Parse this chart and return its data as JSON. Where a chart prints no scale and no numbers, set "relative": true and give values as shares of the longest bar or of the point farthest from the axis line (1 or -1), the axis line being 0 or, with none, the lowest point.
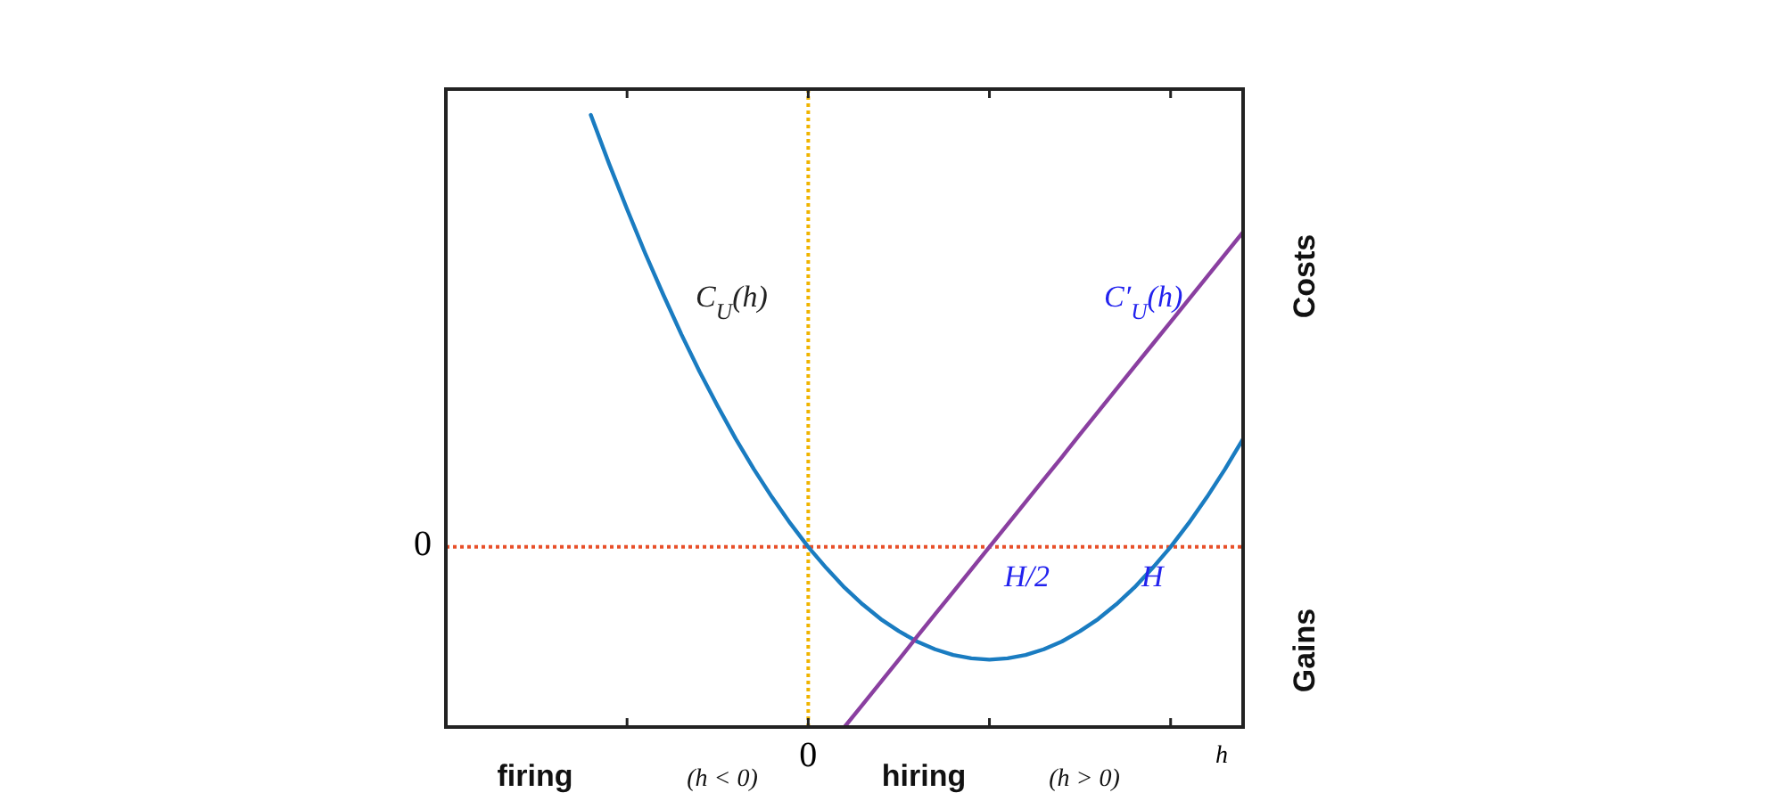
{
  "chart_data": {
    "type": "line",
    "relative": true,
    "xlabel": "h",
    "categories": [
      null,
      null,
      null,
      null,
      null,
      null,
      null,
      null,
      null,
      null,
      null,
      null,
      null,
      null,
      null,
      null,
      null,
      null,
      null,
      null,
      null,
      null,
      null,
      null,
      null,
      null,
      null,
      null,
      null,
      null,
      null,
      null,
      null,
      null,
      null,
      null,
      null,
      null,
      null,
      null,
      null,
      null,
      null,
      null,
      null
    ],
    "series": [
      {
        "values": [
          null,
          null,
          null,
          null,
          null,
          null,
          null,
          null,
          1,
          0.888,
          0.782,
          0.68,
          0.584,
          0.492,
          0.406,
          0.326,
          0.25,
          0.18,
          0.115,
          0.055,
          0,
          -0.049,
          -0.094,
          -0.133,
          -0.167,
          -0.195,
          -0.219,
          -0.237,
          -0.25,
          -0.258,
          -0.261,
          -0.258,
          -0.25,
          -0.237,
          -0.219,
          -0.195,
          -0.167,
          -0.133,
          -0.094,
          -0.049,
          0,
          0.055,
          0.115,
          0.18,
          0.25
        ],
        "color": "#1a7cc1"
      },
      {
        "values": [
          null,
          null,
          null,
          null,
          null,
          null,
          null,
          null,
          null,
          null,
          null,
          null,
          null,
          null,
          null,
          null,
          null,
          null,
          null,
          null,
          null,
          null,
          -0.417,
          -0.365,
          -0.313,
          -0.261,
          -0.208,
          -0.156,
          -0.104,
          -0.052,
          0,
          0.052,
          0.104,
          0.156,
          0.208,
          0.261,
          0.313,
          0.365,
          0.417,
          0.469,
          0.521,
          0.573,
          0.625,
          0.677,
          0.729
        ],
        "color": "#8a3fa0"
      }
    ],
    "ref_lines": [
      {
        "axis": "y",
        "value": 0,
        "label": "0",
        "color": "#e8502a",
        "line_style": "dotted"
      },
      {
        "axis": "x",
        "value": "0",
        "color": "#f0b400",
        "line_style": "dotted"
      }
    ],
    "annotations": [
      "C$_{U}$(h)",
      "C′$_{U}$(h)",
      "H/2",
      "H",
      "firing",
      "(h < 0)",
      "hiring",
      "(h > 0)",
      "Costs",
      "Gains"
    ],
    "grid": false,
    "marker": "none",
    "line_style": "solid"
  }
}
